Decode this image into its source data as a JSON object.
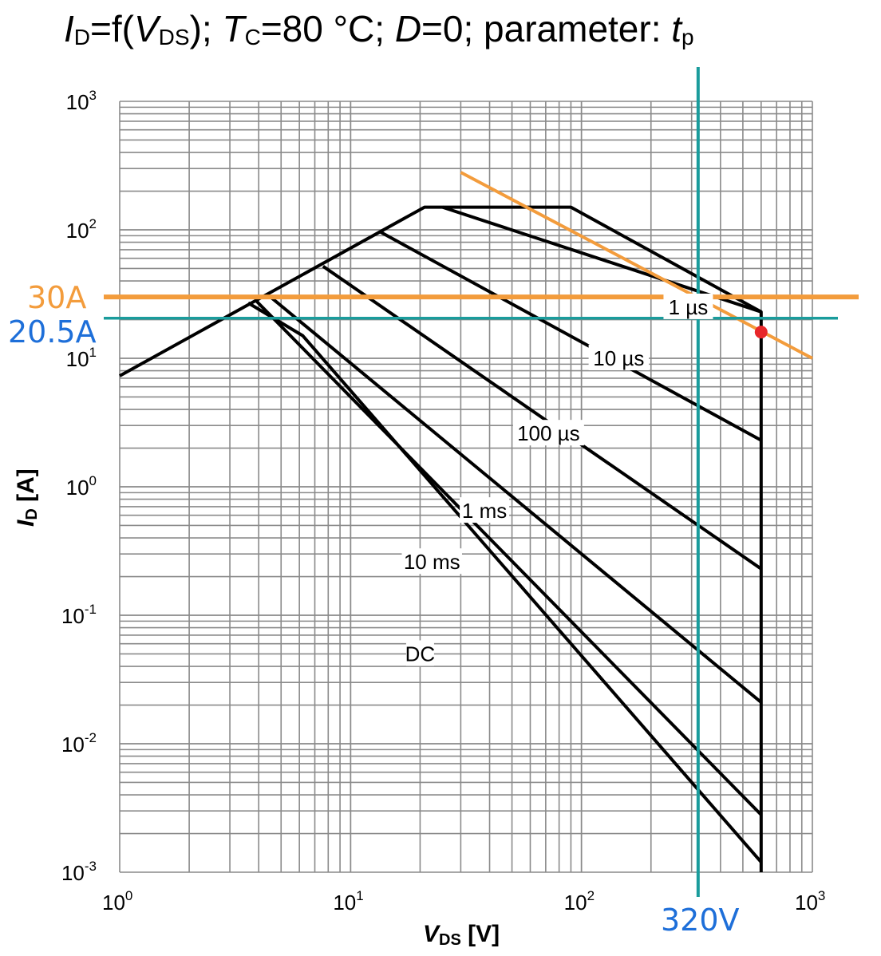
{
  "title": {
    "prefix_italic": "I",
    "prefix_sub": "D",
    "text1": "=f(",
    "v_italic": "V",
    "v_sub": "DS",
    "text2": "); ",
    "t_italic": "T",
    "t_sub": "C",
    "text3": "=80 °C; ",
    "d_italic": "D",
    "text4": "=0; parameter: ",
    "tp_italic": "t",
    "tp_sub": "p"
  },
  "chart_data": {
    "type": "line",
    "x_scale": "log",
    "y_scale": "log",
    "xlim": [
      1,
      1000
    ],
    "ylim": [
      0.001,
      1000
    ],
    "grid": true,
    "xlabel": {
      "italic": "V",
      "sub": "DS",
      "rest": " [V]"
    },
    "ylabel": {
      "italic": "I",
      "sub": "D",
      "rest": " [A]"
    },
    "x_ticks": [
      {
        "value": 1,
        "base": "10",
        "exp": "0"
      },
      {
        "value": 10,
        "base": "10",
        "exp": "1"
      },
      {
        "value": 100,
        "base": "10",
        "exp": "2"
      },
      {
        "value": 1000,
        "base": "10",
        "exp": "3"
      }
    ],
    "y_ticks": [
      {
        "value": 1000,
        "base": "10",
        "exp": "3"
      },
      {
        "value": 100,
        "base": "10",
        "exp": "2"
      },
      {
        "value": 10,
        "base": "10",
        "exp": "1"
      },
      {
        "value": 1,
        "base": "10",
        "exp": "0"
      },
      {
        "value": 0.1,
        "base": "10",
        "exp": "-1"
      },
      {
        "value": 0.01,
        "base": "10",
        "exp": "-2"
      },
      {
        "value": 0.001,
        "base": "10",
        "exp": "-3"
      }
    ],
    "soa_boundary": {
      "points": [
        [
          1,
          7.3
        ],
        [
          20.9,
          150
        ],
        [
          90,
          150
        ],
        [
          600,
          23
        ],
        [
          600,
          0.001
        ]
      ]
    },
    "series": [
      {
        "label": "1 µs",
        "label_at": [
          290,
          25
        ],
        "points": [
          [
            25,
            150
          ],
          [
            600,
            23
          ]
        ]
      },
      {
        "label": "10 µs",
        "label_at": [
          145,
          10
        ],
        "points": [
          [
            13.5,
            96
          ],
          [
            600,
            2.3
          ]
        ]
      },
      {
        "label": "100 µs",
        "label_at": [
          72,
          2.6
        ],
        "points": [
          [
            7.6,
            52
          ],
          [
            600,
            0.23
          ]
        ]
      },
      {
        "label": "1 ms",
        "label_at": [
          38,
          0.65
        ],
        "points": [
          [
            4.5,
            30
          ],
          [
            600,
            0.021
          ]
        ]
      },
      {
        "label": "10 ms",
        "label_at": [
          22.5,
          0.26
        ],
        "points": [
          [
            3.9,
            28
          ],
          [
            600,
            0.0028
          ]
        ]
      },
      {
        "label": "DC",
        "label_at": [
          20,
          0.05
        ],
        "points": [
          [
            3.6,
            27
          ],
          [
            6.2,
            15
          ],
          [
            600,
            0.0012
          ]
        ]
      }
    ],
    "annotations": {
      "h_line_30A": {
        "label": "30A",
        "value": 30,
        "color": "#F39C3C"
      },
      "h_line_20_5A": {
        "label": "20.5A",
        "value": 20.5,
        "color": "#1A9C9C",
        "text_color": "#1E6FD9"
      },
      "v_line_320V": {
        "label": "320V",
        "value": 320,
        "color": "#1A9C9C",
        "text_color": "#1E6FD9"
      },
      "orange_line": {
        "points": [
          [
            30,
            280
          ],
          [
            1000,
            10
          ]
        ],
        "color": "#F39C3C"
      },
      "marker": {
        "point": [
          600,
          16
        ],
        "color": "#E8272A"
      }
    }
  }
}
